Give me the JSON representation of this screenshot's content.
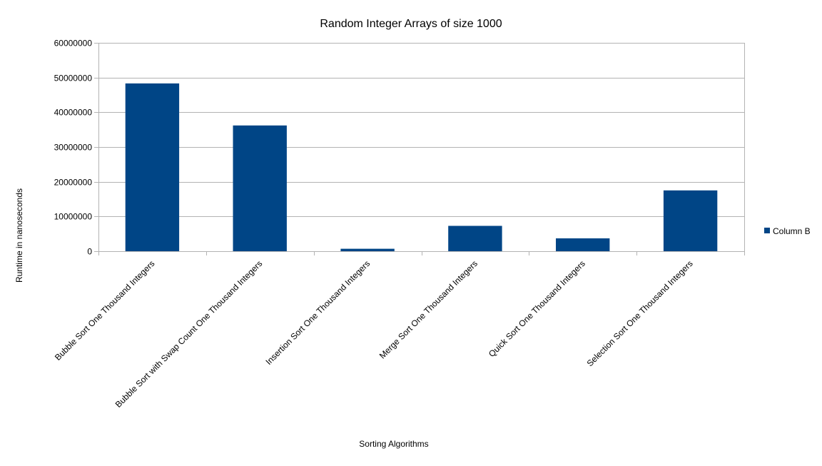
{
  "chart_data": {
    "type": "bar",
    "title": "Random Integer Arrays of size 1000",
    "xlabel": "Sorting Algorithms",
    "ylabel": "Runtime in nanoseconds",
    "categories": [
      "Bubble Sort One Thousand Integers",
      "Bubble Sort with Swap Count One Thousand Integers",
      "Insertion Sort One Thousand Integers",
      "Merge Sort One Thousand Integers",
      "Quick Sort One Thousand Integers",
      "Selection Sort One Thousand Integers"
    ],
    "series": [
      {
        "name": "Column B",
        "color": "#004586",
        "values": [
          48300000,
          36200000,
          700000,
          7300000,
          3700000,
          17500000
        ]
      }
    ],
    "ylim": [
      0,
      60000000
    ],
    "yticks": [
      0,
      10000000,
      20000000,
      30000000,
      40000000,
      50000000,
      60000000
    ],
    "ytick_labels": [
      "0",
      "10000000",
      "20000000",
      "30000000",
      "40000000",
      "50000000",
      "60000000"
    ],
    "grid": true,
    "legend_position": "right"
  }
}
